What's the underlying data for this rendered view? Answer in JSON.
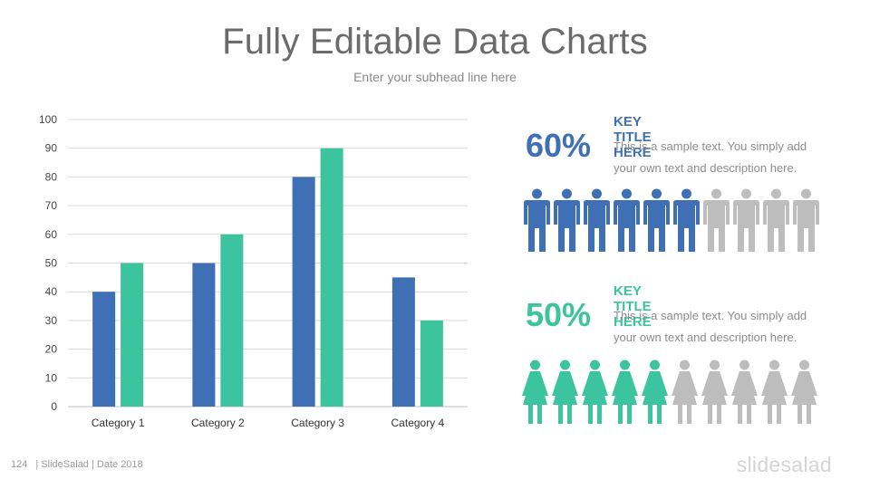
{
  "slide": {
    "title": "Fully Editable Data Charts",
    "subtitle": "Enter your subhead line here"
  },
  "chart_data": {
    "type": "bar",
    "categories": [
      "Category 1",
      "Category 2",
      "Category 3",
      "Category 4"
    ],
    "series": [
      {
        "values": [
          40,
          50,
          80,
          45
        ],
        "color": "#3f6fb5"
      },
      {
        "values": [
          50,
          60,
          90,
          30
        ],
        "color": "#3bc49d"
      }
    ],
    "ylim": [
      0,
      100
    ],
    "yticks": [
      0,
      10,
      20,
      30,
      40,
      50,
      60,
      70,
      80,
      90,
      100
    ],
    "grid": true,
    "title": "",
    "xlabel": "",
    "ylabel": ""
  },
  "stats": [
    {
      "percent": "60%",
      "key_title": "KEY TITLE HERE",
      "text": "This is a sample text. You simply add your own text and description here.",
      "color": "#3f6fb5",
      "icon": "man-icon",
      "filled": 6,
      "total": 10
    },
    {
      "percent": "50%",
      "key_title": "KEY TITLE HERE",
      "text": "This is a sample text. You simply add your own text and description here.",
      "color": "#3bc49d",
      "icon": "woman-icon",
      "filled": 5,
      "total": 10
    }
  ],
  "colors": {
    "inactive_icon": "#bdbdbd"
  },
  "footer": {
    "page_number": "124",
    "info": "| SlideSalad | Date 2018",
    "brand": "slidesalad"
  }
}
